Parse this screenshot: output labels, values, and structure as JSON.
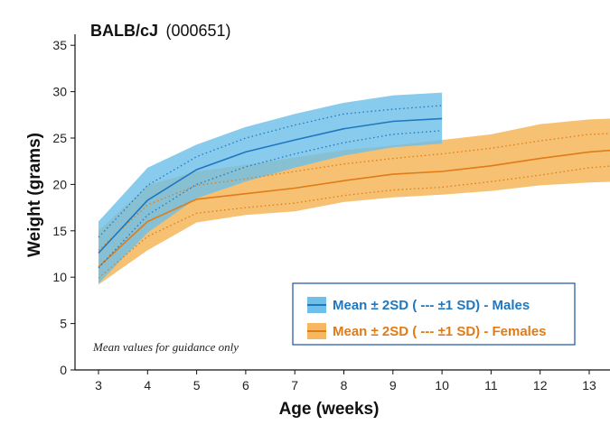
{
  "colors": {
    "males_line": "#1f77c0",
    "males_band": "#6fbfe8",
    "females_line": "#e07b16",
    "females_band": "#f5b860",
    "legend_border": "#2a5fa8"
  },
  "chart_data": {
    "type": "line",
    "title": "BALB/cJ",
    "subtitle": "(000651)",
    "xlabel": "Age (weeks)",
    "ylabel": "Weight (grams)",
    "xlim": [
      3,
      13.5
    ],
    "ylim": [
      0,
      35
    ],
    "x_ticks": [
      "3",
      "4",
      "5",
      "6",
      "7",
      "8",
      "9",
      "10",
      "11",
      "12",
      "13"
    ],
    "y_ticks": [
      "0",
      "5",
      "10",
      "15",
      "20",
      "25",
      "30",
      "35"
    ],
    "annotation": "Mean values for guidance only",
    "legend_position": "bottom-right",
    "series": [
      {
        "name": "Mean ± 2SD ( --- ±1 SD) - Males",
        "color_key": "males",
        "x": [
          3,
          4,
          5,
          6,
          7,
          8,
          9,
          10
        ],
        "mean": [
          12.6,
          18.3,
          21.6,
          23.5,
          24.8,
          26.0,
          26.8,
          27.1
        ],
        "sd1_upper": [
          14.3,
          19.9,
          23.0,
          25.0,
          26.4,
          27.6,
          28.1,
          28.5
        ],
        "sd1_lower": [
          11.0,
          16.7,
          20.0,
          21.9,
          23.3,
          24.5,
          25.4,
          25.8
        ],
        "sd2_upper": [
          16.0,
          21.8,
          24.3,
          26.2,
          27.6,
          28.8,
          29.6,
          29.9
        ],
        "sd2_lower": [
          9.3,
          14.8,
          18.5,
          20.3,
          21.8,
          23.1,
          24.0,
          24.4
        ]
      },
      {
        "name": "Mean ± 2SD ( --- ±1 SD) - Females",
        "color_key": "females",
        "x": [
          3,
          4,
          5,
          6,
          7,
          8,
          9,
          10,
          11,
          12,
          13,
          13.5
        ],
        "mean": [
          11.1,
          16.0,
          18.4,
          19.0,
          19.6,
          20.4,
          21.1,
          21.4,
          22.0,
          22.8,
          23.5,
          23.7
        ],
        "sd1_upper": [
          12.9,
          17.8,
          19.9,
          20.6,
          21.4,
          22.2,
          22.8,
          23.3,
          23.9,
          24.7,
          25.4,
          25.5
        ],
        "sd1_lower": [
          9.9,
          14.4,
          16.9,
          17.5,
          18.0,
          18.8,
          19.4,
          19.7,
          20.3,
          21.0,
          21.8,
          22.0
        ],
        "sd2_upper": [
          15.0,
          19.9,
          21.4,
          22.1,
          22.9,
          23.7,
          24.2,
          24.8,
          25.4,
          26.5,
          27.0,
          27.1
        ],
        "sd2_lower": [
          9.2,
          12.9,
          15.9,
          16.7,
          17.1,
          18.1,
          18.6,
          18.9,
          19.3,
          19.9,
          20.2,
          20.3
        ]
      }
    ]
  }
}
